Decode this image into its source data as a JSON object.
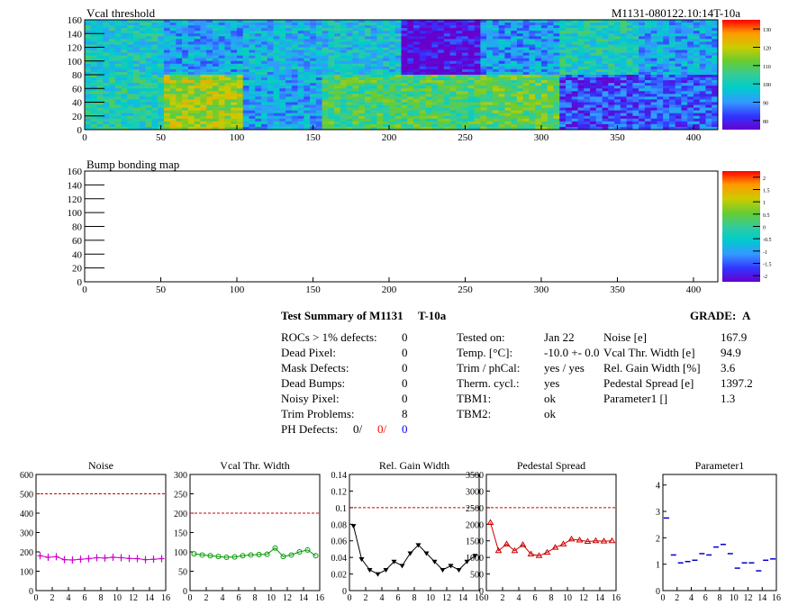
{
  "header": {
    "title": "Vcal threshold",
    "module_id": "M1131-080122.10:14T-10a"
  },
  "bump_map": {
    "title": "Bump bonding map"
  },
  "summary": {
    "title": "Test Summary of M1131",
    "temp_tag": "T-10a",
    "grade_label": "GRADE:",
    "grade_value": "A",
    "defects": [
      {
        "label": "ROCs > 1% defects:",
        "value": "0"
      },
      {
        "label": "Dead Pixel:",
        "value": "0"
      },
      {
        "label": "Mask Defects:",
        "value": "0"
      },
      {
        "label": "Dead Bumps:",
        "value": "0"
      },
      {
        "label": "Noisy Pixel:",
        "value": "0"
      },
      {
        "label": "Trim Problems:",
        "value": "8"
      }
    ],
    "ph_defects": {
      "label": "PH Defects:",
      "v1": "0/",
      "v2": "0/",
      "v3": "0"
    },
    "conditions": [
      {
        "label": "Tested on:",
        "value": "Jan 22"
      },
      {
        "label": "Temp. [°C]:",
        "value": "-10.0 +- 0.0"
      },
      {
        "label": "Trim / phCal:",
        "value": "yes / yes"
      },
      {
        "label": "Therm. cycl.:",
        "value": "yes"
      },
      {
        "label": "TBM1:",
        "value": "ok"
      },
      {
        "label": "TBM2:",
        "value": "ok"
      }
    ],
    "results": [
      {
        "label": "Noise [e]",
        "value": "167.9"
      },
      {
        "label": "Vcal Thr. Width [e]",
        "value": "94.9"
      },
      {
        "label": "Rel. Gain Width [%]",
        "value": "3.6"
      },
      {
        "label": "Pedestal Spread [e]",
        "value": "1397.2"
      },
      {
        "label": "Parameter1 []",
        "value": "1.3"
      }
    ]
  },
  "colors": {
    "ph_v2": "#ff0000",
    "ph_v3": "#0000ff",
    "noise": "#cc00cc",
    "vcal": "#009900",
    "gain": "#000000",
    "pedestal": "#cc0000",
    "param1": "#0000cc",
    "limit_line": "#cc0000"
  },
  "chart_data": [
    {
      "type": "heatmap",
      "title": "Vcal threshold",
      "xlim": [
        0,
        416
      ],
      "ylim": [
        0,
        160
      ],
      "xticks": [
        "0",
        "50",
        "100",
        "150",
        "200",
        "250",
        "300",
        "350",
        "400"
      ],
      "yticks": [
        "0",
        "20",
        "40",
        "60",
        "80",
        "100",
        "120",
        "140",
        "160"
      ],
      "zticks": [
        "80",
        "90",
        "100",
        "110",
        "120",
        "130"
      ],
      "roc_means_top": [
        102,
        96,
        98,
        100,
        82,
        95,
        104,
        96
      ],
      "roc_means_bottom": [
        104,
        118,
        96,
        110,
        110,
        112,
        88,
        90
      ]
    },
    {
      "type": "heatmap",
      "title": "Bump bonding map",
      "xlim": [
        0,
        416
      ],
      "ylim": [
        0,
        160
      ],
      "xticks": [
        "0",
        "50",
        "100",
        "150",
        "200",
        "250",
        "300",
        "350",
        "400"
      ],
      "yticks": [
        "0",
        "20",
        "40",
        "60",
        "80",
        "100",
        "120",
        "140",
        "160"
      ],
      "zticks": [
        "-2",
        "-1.5",
        "-1",
        "-0.5",
        "0",
        "0.5",
        "1",
        "1.5",
        "2"
      ]
    },
    {
      "type": "line",
      "title": "Noise",
      "x": [
        0,
        1,
        2,
        3,
        4,
        5,
        6,
        7,
        8,
        9,
        10,
        11,
        12,
        13,
        14,
        15
      ],
      "values": [
        180,
        172,
        175,
        160,
        158,
        162,
        165,
        170,
        168,
        172,
        170,
        166,
        165,
        160,
        162,
        165
      ],
      "ylim": [
        0,
        600
      ],
      "yticks": [
        "0",
        "100",
        "200",
        "300",
        "400",
        "500",
        "600"
      ],
      "limit": 500
    },
    {
      "type": "line",
      "title": "Vcal Thr. Width",
      "x": [
        0,
        1,
        2,
        3,
        4,
        5,
        6,
        7,
        8,
        9,
        10,
        11,
        12,
        13,
        14,
        15
      ],
      "values": [
        95,
        92,
        90,
        88,
        86,
        87,
        90,
        92,
        93,
        94,
        110,
        88,
        92,
        100,
        105,
        90
      ],
      "ylim": [
        0,
        300
      ],
      "yticks": [
        "0",
        "50",
        "100",
        "150",
        "200",
        "250",
        "300"
      ],
      "limit": 200
    },
    {
      "type": "line",
      "title": "Rel. Gain Width",
      "x": [
        0,
        1,
        2,
        3,
        4,
        5,
        6,
        7,
        8,
        9,
        10,
        11,
        12,
        13,
        14,
        15
      ],
      "values": [
        0.078,
        0.038,
        0.025,
        0.02,
        0.025,
        0.035,
        0.03,
        0.045,
        0.055,
        0.045,
        0.035,
        0.025,
        0.03,
        0.025,
        0.035,
        0.042
      ],
      "ylim": [
        0,
        0.14
      ],
      "yticks": [
        "0",
        "0.02",
        "0.04",
        "0.06",
        "0.08",
        "0.1",
        "0.12",
        "0.14"
      ],
      "limit": 0.1
    },
    {
      "type": "line",
      "title": "Pedestal Spread",
      "x": [
        0,
        1,
        2,
        3,
        4,
        5,
        6,
        7,
        8,
        9,
        10,
        11,
        12,
        13,
        14,
        15
      ],
      "values": [
        2050,
        1200,
        1400,
        1200,
        1380,
        1100,
        1050,
        1150,
        1300,
        1400,
        1550,
        1520,
        1480,
        1500,
        1490,
        1500
      ],
      "ylim": [
        0,
        3500
      ],
      "yticks": [
        "0",
        "500",
        "1000",
        "1500",
        "2000",
        "2500",
        "3000",
        "3500"
      ],
      "limit": 2500
    },
    {
      "type": "scatter",
      "title": "Parameter1",
      "x": [
        0,
        1,
        2,
        3,
        4,
        5,
        6,
        7,
        8,
        9,
        10,
        11,
        12,
        13,
        14,
        15
      ],
      "values": [
        2.75,
        1.35,
        1.05,
        1.1,
        1.15,
        1.4,
        1.35,
        1.65,
        1.75,
        1.4,
        0.85,
        1.05,
        1.05,
        0.75,
        1.15,
        1.2
      ],
      "ylim": [
        0,
        4.4
      ],
      "yticks": [
        "0",
        "1",
        "2",
        "3",
        "4"
      ]
    }
  ],
  "mini_xticks": [
    "0",
    "2",
    "4",
    "6",
    "8",
    "10",
    "12",
    "14",
    "16"
  ]
}
